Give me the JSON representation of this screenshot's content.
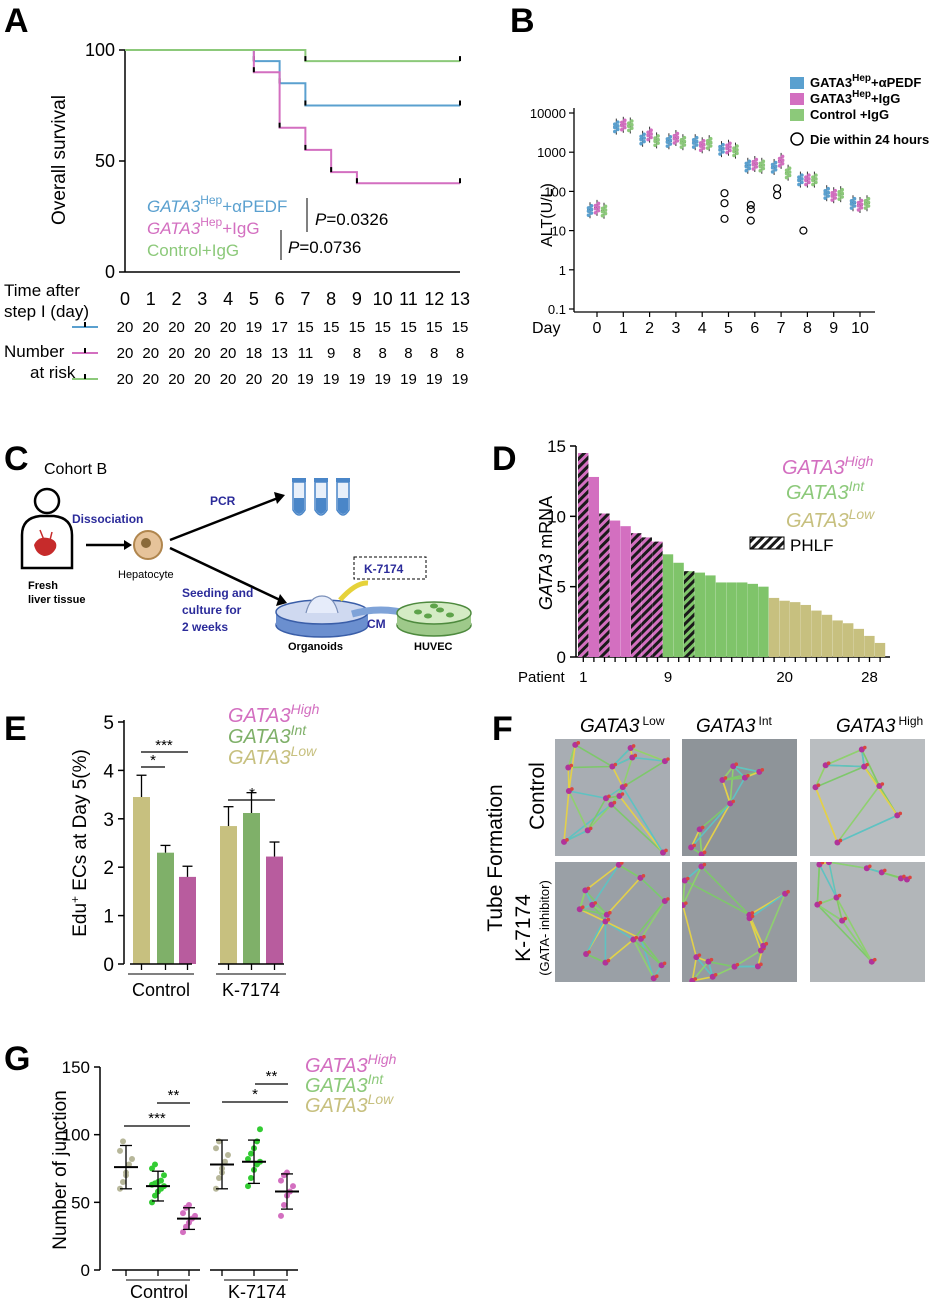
{
  "colors": {
    "pink": "#d36fc0",
    "blue": "#5aa0cf",
    "green": "#8cc97a",
    "olive": "#c7c07f",
    "gfill": "#7fc46a",
    "bright_green": "#33cc33",
    "navy": "#2b2b9a"
  },
  "panelA": {
    "label": "A",
    "ylabel": "Overall survival",
    "legend": {
      "pedf": "GATA3",
      "pedf_sup": "Hep",
      "pedf_suffix": "+αPEDF",
      "igg": "GATA3",
      "igg_sup": "Hep",
      "igg_suffix": "+IgG",
      "ctrl": "Control+IgG"
    },
    "p1": "=0.0326",
    "p2": "=0.0736",
    "p_letter": "P",
    "time_label_1": "Time after",
    "time_label_2": "step I (day)",
    "nrisk_label_1": "Number",
    "nrisk_label_2": "at risk",
    "chart_data": {
      "type": "line",
      "x": [
        0,
        1,
        2,
        3,
        4,
        5,
        6,
        7,
        8,
        9,
        10,
        11,
        12,
        13
      ],
      "xticks": [
        "0",
        "1",
        "2",
        "3",
        "4",
        "5",
        "6",
        "7",
        "8",
        "9",
        "10",
        "11",
        "12",
        "13"
      ],
      "yticks": [
        "0",
        "50",
        "100"
      ],
      "ylim": [
        0,
        100
      ],
      "series": [
        {
          "name": "GATA3Hep+αPEDF",
          "color": "#5aa0cf",
          "steps": [
            [
              0,
              100
            ],
            [
              5,
              95
            ],
            [
              6,
              85
            ],
            [
              7,
              75
            ],
            [
              13,
              75
            ]
          ]
        },
        {
          "name": "GATA3Hep+IgG",
          "color": "#d36fc0",
          "steps": [
            [
              0,
              100
            ],
            [
              5,
              90
            ],
            [
              6,
              65
            ],
            [
              7,
              55
            ],
            [
              8,
              45
            ],
            [
              9,
              40
            ],
            [
              13,
              40
            ]
          ]
        },
        {
          "name": "Control+IgG",
          "color": "#8cc97a",
          "steps": [
            [
              0,
              100
            ],
            [
              7,
              95
            ],
            [
              13,
              95
            ]
          ]
        }
      ],
      "at_risk": [
        [
          "20",
          "20",
          "20",
          "20",
          "20",
          "19",
          "17",
          "15",
          "15",
          "15",
          "15",
          "15",
          "15",
          "15"
        ],
        [
          "20",
          "20",
          "20",
          "20",
          "20",
          "18",
          "13",
          "11",
          "9",
          "8",
          "8",
          "8",
          "8",
          "8"
        ],
        [
          "20",
          "20",
          "20",
          "20",
          "20",
          "20",
          "20",
          "19",
          "19",
          "19",
          "19",
          "19",
          "19",
          "19"
        ]
      ]
    }
  },
  "panelB": {
    "label": "B",
    "ylabel": "ALT(U/L)",
    "xlabel": "Day",
    "legend": [
      {
        "text": "GATA3",
        "sup": "Hep",
        "suffix": "+αPEDF",
        "color": "#5aa0cf"
      },
      {
        "text": "GATA3",
        "sup": "Hep",
        "suffix": "+IgG",
        "color": "#d36fc0"
      },
      {
        "text": "Control    +IgG",
        "sup": "",
        "suffix": "",
        "color": "#8cc97a"
      }
    ],
    "die_label": "Die within 24 hours",
    "chart_data": {
      "type": "scatter",
      "scale": "log",
      "yticks": [
        "0.1",
        "1",
        "10",
        "100",
        "1000",
        "10000"
      ],
      "xticks": [
        "0",
        "1",
        "2",
        "3",
        "4",
        "5",
        "6",
        "7",
        "8",
        "9",
        "10"
      ],
      "series": [
        {
          "name": "GATA3Hep+αPEDF",
          "color": "#5aa0cf",
          "medians": [
            33,
            4500,
            2200,
            1900,
            1800,
            1200,
            450,
            420,
            200,
            90,
            50
          ]
        },
        {
          "name": "GATA3Hep+IgG",
          "color": "#d36fc0",
          "medians": [
            38,
            5000,
            2800,
            2300,
            1500,
            1300,
            500,
            600,
            200,
            80,
            45
          ]
        },
        {
          "name": "Control+IgG",
          "color": "#8cc97a",
          "medians": [
            32,
            4800,
            2000,
            1800,
            1700,
            1100,
            450,
            300,
            200,
            85,
            50
          ]
        }
      ],
      "died": [
        [
          5,
          90
        ],
        [
          5,
          50
        ],
        [
          5,
          20
        ],
        [
          6,
          45
        ],
        [
          6,
          35
        ],
        [
          6,
          18
        ],
        [
          7,
          120
        ],
        [
          7,
          80
        ],
        [
          8,
          10
        ]
      ]
    }
  },
  "panelC": {
    "label": "C",
    "cohort": "Cohort B",
    "dissociation": "Dissociation",
    "pcr": "PCR",
    "hepatocyte": "Hepatocyte",
    "fresh1": "Fresh",
    "fresh2": "liver tissue",
    "seeding": [
      "Seeding and",
      "culture for",
      "2 weeks"
    ],
    "inhibitor": "K-7174",
    "cm": "CM",
    "organoids": "Organoids",
    "huvec": "HUVEC"
  },
  "panelD": {
    "label": "D",
    "ylabel_gene": "GATA3",
    "ylabel_rest": " mRNA",
    "xlabel": "Patient",
    "legend": {
      "high": "GATA3",
      "high_sup": "High",
      "int": "GATA3",
      "int_sup": "Int",
      "low": "GATA3",
      "low_sup": "Low",
      "phlf": "PHLF"
    },
    "chart_data": {
      "type": "bar",
      "ylim": [
        0,
        15
      ],
      "yticks": [
        "0",
        "5",
        "10",
        "15"
      ],
      "xticks": [
        "1",
        "9",
        "20",
        "28"
      ],
      "values": [
        14.5,
        12.8,
        10.2,
        9.7,
        9.3,
        8.8,
        8.5,
        8.2,
        7.3,
        6.7,
        6.1,
        6.0,
        5.8,
        5.3,
        5.3,
        5.3,
        5.2,
        5.0,
        4.2,
        4.0,
        3.9,
        3.7,
        3.3,
        3.0,
        2.6,
        2.4,
        2.0,
        1.5,
        1.0
      ],
      "groups": [
        "high",
        "high",
        "high",
        "high",
        "high",
        "high",
        "high",
        "high",
        "int",
        "int",
        "int",
        "int",
        "int",
        "int",
        "int",
        "int",
        "int",
        "int",
        "low",
        "low",
        "low",
        "low",
        "low",
        "low",
        "low",
        "low",
        "low",
        "low",
        "low"
      ],
      "phlf": [
        0,
        2,
        5,
        6,
        7,
        10
      ]
    }
  },
  "panelE": {
    "label": "E",
    "ylabel_sup": "+",
    "ylabel_pre": "Edu",
    "ylabel_post": " ECs at Day 5(%)",
    "legend": {
      "high": "GATA3",
      "high_sup": "High",
      "int": "GATA3",
      "int_sup": "Int",
      "low": "GATA3",
      "low_sup": "Low"
    },
    "groups": [
      "Control",
      "K-7174"
    ],
    "sig": [
      "***",
      "*",
      "*"
    ],
    "chart_data": {
      "type": "bar",
      "ylim": [
        0,
        5
      ],
      "yticks": [
        "0",
        "1",
        "2",
        "3",
        "4",
        "5"
      ],
      "series": [
        {
          "name": "GATA3 Low",
          "color": "#c7c07f",
          "values": [
            3.45,
            2.85
          ],
          "err": [
            0.45,
            0.4
          ]
        },
        {
          "name": "GATA3 Int",
          "color": "#7fb069",
          "values": [
            2.3,
            3.12
          ],
          "err": [
            0.15,
            0.42
          ]
        },
        {
          "name": "GATA3 High",
          "color": "#b85c9e",
          "values": [
            1.8,
            2.22
          ],
          "err": [
            0.22,
            0.3
          ]
        }
      ]
    }
  },
  "panelF": {
    "label": "F",
    "cols": [
      "GATA3",
      "GATA3",
      "GATA3"
    ],
    "col_sups": [
      "Low",
      "Int",
      "High"
    ],
    "tube": "Tube Formation",
    "control": "Control",
    "k7174": "K-7174",
    "k7174_sub": "(GATA- inhibitor)"
  },
  "panelG": {
    "label": "G",
    "ylabel": "Number of junction",
    "legend": {
      "high": "GATA3",
      "high_sup": "High",
      "int": "GATA3",
      "int_sup": "Int",
      "low": "GATA3",
      "low_sup": "Low"
    },
    "groups": [
      "Control",
      "K-7174"
    ],
    "sig": [
      "***",
      "**",
      "*",
      "**"
    ],
    "chart_data": {
      "type": "scatter",
      "ylim": [
        0,
        150
      ],
      "yticks": [
        "0",
        "50",
        "100",
        "150"
      ],
      "series": [
        {
          "name": "GATA3 Low",
          "color": "#b7b79a",
          "means": [
            76,
            78
          ],
          "sd": [
            16,
            18
          ],
          "points": [
            [
              60,
              65,
              72,
              78,
              82,
              88,
              95,
              70
            ],
            [
              60,
              68,
              75,
              80,
              85,
              90,
              95,
              72
            ]
          ]
        },
        {
          "name": "GATA3 Int",
          "color": "#33cc33",
          "means": [
            62,
            80
          ],
          "sd": [
            11,
            16
          ],
          "points": [
            [
              50,
              55,
              58,
              60,
              62,
              63,
              64,
              65,
              66,
              70,
              75,
              78
            ],
            [
              62,
              68,
              74,
              78,
              80,
              82,
              86,
              90,
              95,
              104
            ]
          ]
        },
        {
          "name": "GATA3 High",
          "color": "#d36fc0",
          "means": [
            38,
            58
          ],
          "sd": [
            8,
            13
          ],
          "points": [
            [
              28,
              32,
              35,
              38,
              40,
              42,
              46,
              48
            ],
            [
              40,
              48,
              55,
              58,
              62,
              66,
              70,
              72
            ]
          ]
        }
      ]
    }
  }
}
